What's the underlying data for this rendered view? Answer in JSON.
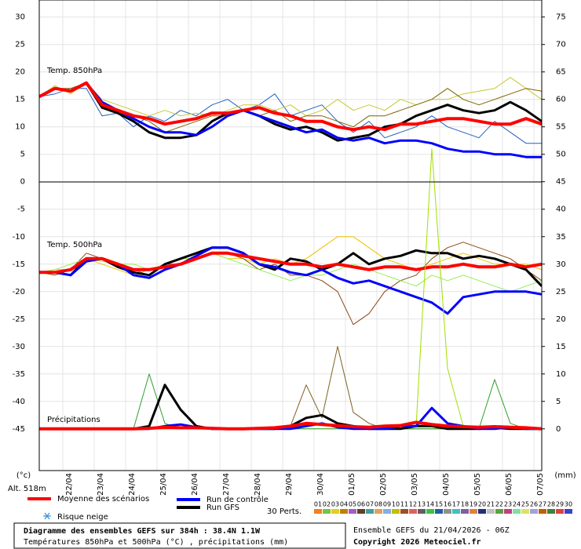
{
  "chart_data": {
    "type": "line",
    "title": "Diagramme des ensembles GEFS sur 384h : 38.4N 1.1W",
    "subtitle": "Températures 850hPa et 500hPa (°C) , précipitations (mm)",
    "run_info": "Ensemble GEFS du 21/04/2026 - 06Z",
    "copyright": "Copyright 2026 Meteociel.fr",
    "y_unit": "(°c)",
    "y2_unit": "(mm)",
    "altitude": "Alt. 518m",
    "snow_label": "Risque neige",
    "grid": true,
    "x": [
      0,
      12,
      24,
      36,
      48,
      60,
      72,
      84,
      96,
      108,
      120,
      132,
      144,
      156,
      168,
      180,
      192,
      204,
      216,
      228,
      240,
      252,
      264,
      276,
      288,
      300,
      312,
      324,
      336,
      348,
      360,
      372,
      384
    ],
    "xlim": [
      0,
      384
    ],
    "xticks": [
      {
        "value": 18,
        "label": "22/04"
      },
      {
        "value": 42,
        "label": "23/04"
      },
      {
        "value": 66,
        "label": "24/04"
      },
      {
        "value": 90,
        "label": "25/04"
      },
      {
        "value": 114,
        "label": "26/04"
      },
      {
        "value": 138,
        "label": "27/04"
      },
      {
        "value": 162,
        "label": "28/04"
      },
      {
        "value": 186,
        "label": "29/04"
      },
      {
        "value": 210,
        "label": "30/04"
      },
      {
        "value": 234,
        "label": "01/05"
      },
      {
        "value": 258,
        "label": "02/05"
      },
      {
        "value": 282,
        "label": "03/05"
      },
      {
        "value": 306,
        "label": "04/05"
      },
      {
        "value": 330,
        "label": "05/05"
      },
      {
        "value": 354,
        "label": "06/05"
      },
      {
        "value": 378,
        "label": "07/05"
      }
    ],
    "ylim": [
      -52.6,
      33.1
    ],
    "yticks": [
      30,
      25,
      20,
      15,
      10,
      5,
      0,
      -5,
      -10,
      -15,
      -20,
      -25,
      -30,
      -35,
      -40,
      -45
    ],
    "y2lim": [
      -7.6,
      78.1
    ],
    "y2ticks": [
      75,
      70,
      65,
      60,
      55,
      50,
      45,
      40,
      35,
      30,
      25,
      20,
      15,
      10,
      5,
      0
    ],
    "legend": [
      {
        "name": "Moyenne des scénarios",
        "color": "#ff0000"
      },
      {
        "name": "Run de contrôle",
        "color": "#0000ff"
      },
      {
        "name": "Run GFS",
        "color": "#000000"
      }
    ],
    "perturbations": {
      "label": "30 Perts.",
      "names": [
        "01",
        "02",
        "03",
        "04",
        "05",
        "06",
        "07",
        "08",
        "09",
        "10",
        "11",
        "12",
        "13",
        "14",
        "15",
        "16",
        "17",
        "18",
        "19",
        "20",
        "21",
        "22",
        "23",
        "24",
        "25",
        "26",
        "27",
        "28",
        "29",
        "30"
      ],
      "colors": [
        "#f08020",
        "#80c040",
        "#e0d020",
        "#c08000",
        "#a060c0",
        "#604020",
        "#40a0a0",
        "#e0a060",
        "#80b0e0",
        "#c0c000",
        "#a05020",
        "#e06060",
        "#606060",
        "#40c040",
        "#2060a0",
        "#909090",
        "#40c0c0",
        "#8060a0",
        "#e08040",
        "#203080",
        "#c0c0c0",
        "#60a040",
        "#c04080",
        "#80e0a0",
        "#e0e060",
        "#a0a0e0",
        "#c06000",
        "#408040",
        "#e04040",
        "#4040c0"
      ]
    },
    "panels": [
      {
        "label": "Temp. 850hPa",
        "series": [
          {
            "color": "#2060c0",
            "width": 1,
            "values": [
              15.5,
              16,
              17,
              17,
              12,
              12.5,
              10,
              12,
              11,
              13,
              12,
              14,
              15,
              13,
              14,
              16,
              12,
              13,
              14,
              11,
              9,
              11,
              8,
              9,
              10,
              12,
              10,
              9,
              8,
              11,
              9,
              7,
              7
            ]
          },
          {
            "color": "#c8c830",
            "width": 1,
            "values": [
              15.5,
              17.5,
              16,
              18,
              15,
              14,
              13,
              12,
              13,
              12,
              12.5,
              12,
              13,
              14,
              14,
              13,
              14,
              12,
              13,
              15,
              13,
              14,
              13,
              15,
              14,
              15,
              15,
              16,
              16.5,
              17,
              19,
              17,
              15
            ]
          },
          {
            "color": "#806000",
            "width": 1,
            "values": [
              15.5,
              17,
              17,
              18,
              14,
              13,
              12,
              11,
              9,
              10,
              11,
              12,
              12,
              13,
              12,
              13,
              11,
              12,
              12,
              11,
              10,
              12,
              12,
              13,
              14,
              15,
              17,
              15,
              14,
              15,
              16,
              17,
              16.5
            ]
          },
          {
            "color": "#000000",
            "width": 3,
            "values": [
              15.5,
              17,
              16.5,
              18,
              13.5,
              12.5,
              11,
              9,
              8,
              8,
              8.5,
              11,
              12.5,
              13,
              12,
              10.5,
              9.5,
              10,
              9,
              7.5,
              8,
              8.5,
              10,
              10.5,
              12,
              13,
              14,
              13,
              12.5,
              13,
              14.5,
              13,
              11
            ]
          },
          {
            "color": "#0000ff",
            "width": 3,
            "values": [
              15.5,
              17,
              16.5,
              18,
              14.5,
              13,
              11.5,
              10,
              9,
              9,
              8.5,
              10,
              12,
              13,
              12,
              11,
              10,
              9,
              9.5,
              8,
              7.5,
              8,
              7,
              7.5,
              7.5,
              7,
              6,
              5.5,
              5.5,
              5,
              5,
              4.5,
              4.5
            ]
          },
          {
            "color": "#ff0000",
            "width": 4,
            "values": [
              15.5,
              17,
              16.5,
              18,
              14,
              13,
              12,
              11.5,
              10.5,
              11,
              11.5,
              12.5,
              12.5,
              13,
              13.5,
              12.5,
              12,
              11,
              11,
              10,
              9.5,
              10,
              9.5,
              10.5,
              10.5,
              11,
              11.5,
              11.5,
              11,
              10.5,
              10.5,
              11.5,
              10.5
            ]
          }
        ]
      },
      {
        "label": "Temp. 500hPa",
        "series": [
          {
            "color": "#f0c000",
            "width": 1,
            "values": [
              -16.5,
              -16,
              -16,
              -14,
              -15,
              -16,
              -17,
              -16,
              -15,
              -14,
              -14,
              -13,
              -14,
              -14,
              -15,
              -14,
              -15,
              -14,
              -12,
              -10,
              -10,
              -12,
              -14,
              -15,
              -16,
              -15,
              -14,
              -13,
              -14,
              -15,
              -15,
              -15,
              -16
            ]
          },
          {
            "color": "#8b4513",
            "width": 1,
            "values": [
              -16.5,
              -17,
              -16,
              -13,
              -14,
              -15,
              -16,
              -17,
              -15,
              -15,
              -14,
              -13,
              -13,
              -14,
              -16,
              -15,
              -17,
              -17,
              -18,
              -20,
              -26,
              -24,
              -20,
              -18,
              -17,
              -14,
              -12,
              -11,
              -12,
              -13,
              -14,
              -16,
              -18
            ]
          },
          {
            "color": "#90ee50",
            "width": 1,
            "values": [
              -16.5,
              -16,
              -15,
              -14,
              -14.5,
              -15,
              -15,
              -16,
              -15,
              -14,
              -14,
              -13,
              -14,
              -15,
              -16,
              -17,
              -18,
              -17,
              -17,
              -16,
              -15,
              -16,
              -17,
              -18,
              -19,
              -17,
              -18,
              -17,
              -18,
              -19,
              -20,
              -19,
              -18
            ]
          },
          {
            "color": "#000000",
            "width": 3,
            "values": [
              -16.5,
              -16.5,
              -17,
              -14,
              -14,
              -15.5,
              -16.5,
              -17,
              -15,
              -14,
              -13,
              -12,
              -12,
              -13,
              -15,
              -16,
              -14,
              -14.5,
              -16,
              -15,
              -13,
              -15,
              -14,
              -13.5,
              -12.5,
              -13,
              -13,
              -14,
              -13.5,
              -14,
              -15,
              -16,
              -19
            ]
          },
          {
            "color": "#0000ff",
            "width": 3,
            "values": [
              -16.5,
              -16.5,
              -17,
              -14.5,
              -14,
              -15,
              -17,
              -17.5,
              -16,
              -15,
              -13.5,
              -12,
              -12,
              -13,
              -15,
              -15.5,
              -16.5,
              -17,
              -16,
              -17.5,
              -18.5,
              -18,
              -19,
              -20,
              -21,
              -22,
              -24,
              -21,
              -20.5,
              -20,
              -20,
              -20,
              -20.5
            ]
          },
          {
            "color": "#ff0000",
            "width": 4,
            "values": [
              -16.5,
              -16.5,
              -16,
              -14,
              -14,
              -15,
              -16,
              -16,
              -15.5,
              -15,
              -14,
              -13,
              -13,
              -13.5,
              -14,
              -14.5,
              -15,
              -15,
              -15.5,
              -15,
              -15.5,
              -16,
              -15.5,
              -15.5,
              -16,
              -15.5,
              -15.5,
              -15,
              -15.5,
              -15.5,
              -15,
              -15.5,
              -15
            ]
          }
        ]
      },
      {
        "label": "Précipitations",
        "series": [
          {
            "color": "#a0e000",
            "width": 1,
            "axis": "y2",
            "values": [
              0,
              0,
              0,
              0,
              0,
              0,
              0,
              0,
              0,
              0,
              0,
              0,
              0,
              0,
              0,
              0,
              0,
              0,
              0,
              0,
              0,
              0,
              0,
              0,
              0.5,
              51,
              11,
              0.5,
              0,
              0,
              0,
              0,
              0
            ]
          },
          {
            "color": "#806020",
            "width": 1,
            "axis": "y2",
            "values": [
              0,
              0,
              0,
              0,
              0,
              0,
              0,
              0,
              0,
              0,
              0,
              0,
              0,
              0,
              0,
              0,
              0.5,
              8,
              2,
              15,
              3,
              1,
              0,
              0,
              0,
              0,
              0,
              0,
              0,
              0,
              0,
              0,
              0
            ]
          },
          {
            "color": "#30a030",
            "width": 1,
            "axis": "y2",
            "values": [
              0,
              0,
              0,
              0,
              0,
              0,
              0,
              10,
              1,
              0,
              0,
              0,
              0,
              0,
              0,
              0,
              0,
              0,
              0,
              0,
              0,
              0,
              0,
              0,
              0,
              0,
              0,
              0,
              0,
              9,
              1,
              0,
              0
            ]
          },
          {
            "color": "#000000",
            "width": 3,
            "axis": "y2",
            "values": [
              0,
              0,
              0,
              0,
              0,
              0,
              0,
              0.5,
              8,
              3.5,
              0.5,
              0,
              0,
              0,
              0,
              0,
              0.5,
              2,
              2.5,
              1,
              0.5,
              0,
              0,
              0,
              0.5,
              0.5,
              0,
              0,
              0,
              0.2,
              0,
              0,
              0
            ]
          },
          {
            "color": "#0000ff",
            "width": 3,
            "axis": "y2",
            "values": [
              0,
              0,
              0,
              0,
              0,
              0,
              0,
              0,
              0.5,
              0.8,
              0.3,
              0,
              0,
              0,
              0,
              0,
              0,
              0.5,
              1,
              0.3,
              0,
              0,
              0,
              0.5,
              0.5,
              3.8,
              1,
              0.5,
              0,
              0,
              0.3,
              0,
              0
            ]
          },
          {
            "color": "#ff0000",
            "width": 4,
            "axis": "y2",
            "values": [
              0,
              0,
              0,
              0,
              0,
              0,
              0,
              0.1,
              0.3,
              0.2,
              0.2,
              0.1,
              0,
              0,
              0.1,
              0.2,
              0.5,
              1,
              0.8,
              0.6,
              0.4,
              0.3,
              0.5,
              0.6,
              1.2,
              0.8,
              0.5,
              0.4,
              0.3,
              0.4,
              0.3,
              0.2,
              0
            ]
          }
        ]
      }
    ]
  }
}
